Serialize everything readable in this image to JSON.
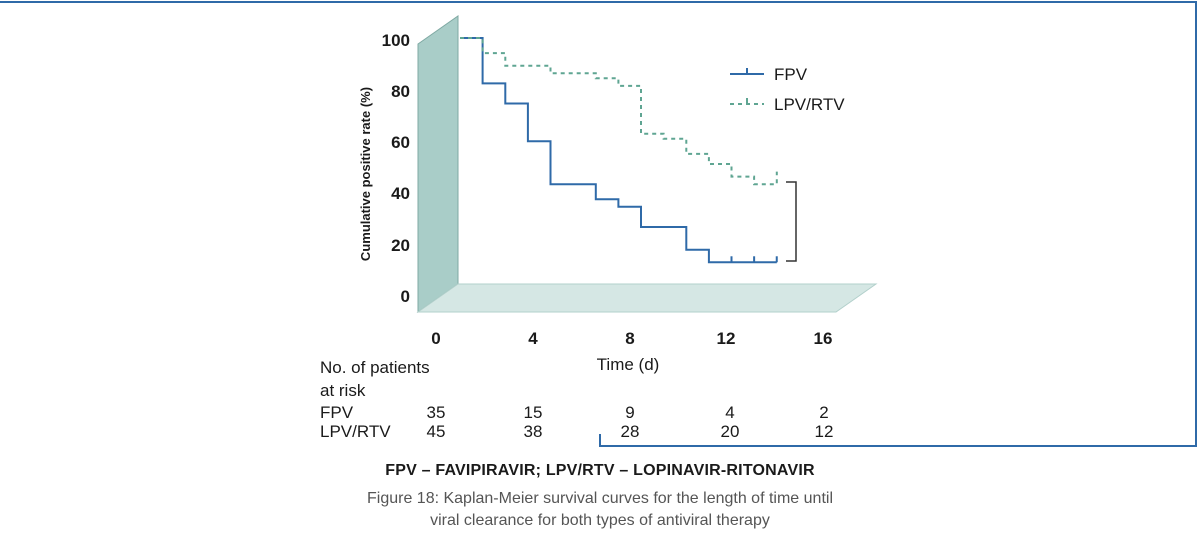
{
  "chart_data": {
    "type": "line",
    "step": true,
    "ylabel": "Cumulative positive rate (%)",
    "xlabel": "Time (d)",
    "xlim": [
      0,
      16
    ],
    "ylim": [
      0,
      100
    ],
    "xticks": [
      "0",
      "4",
      "8",
      "12",
      "16"
    ],
    "yticks": [
      "0",
      "20",
      "40",
      "60",
      "80",
      "100"
    ],
    "legend_position": "top-right",
    "series": [
      {
        "name": "FPV",
        "color": "#2f6aa8",
        "style": "solid",
        "x": [
          0,
          1,
          1,
          2,
          2,
          3,
          3,
          4,
          4,
          6,
          6,
          7,
          7,
          8,
          8,
          10,
          10,
          11,
          11,
          14
        ],
        "y": [
          100,
          100,
          82,
          82,
          74,
          74,
          59,
          59,
          42,
          42,
          36,
          36,
          33,
          33,
          25,
          25,
          16,
          16,
          11,
          11
        ],
        "censored_x": [
          12,
          13,
          14
        ],
        "censored_y": [
          11,
          11,
          11
        ]
      },
      {
        "name": "LPV/RTV",
        "color": "#5fa592",
        "style": "dashed",
        "x": [
          0,
          1,
          1,
          2,
          2,
          4,
          4,
          6,
          6,
          7,
          7,
          8,
          8,
          9,
          9,
          10,
          10,
          11,
          11,
          12,
          12,
          13,
          13,
          14,
          14
        ],
        "y": [
          100,
          100,
          94,
          94,
          89,
          89,
          86,
          86,
          84,
          84,
          81,
          81,
          62,
          62,
          60,
          60,
          54,
          54,
          50,
          50,
          45,
          45,
          42,
          42,
          47
        ]
      }
    ]
  },
  "risk_table": {
    "header_line1": "No. of patients",
    "header_line2": "at risk",
    "rows": [
      {
        "label": "FPV",
        "values": [
          "35",
          "15",
          "9",
          "4",
          "2"
        ]
      },
      {
        "label": "LPV/RTV",
        "values": [
          "45",
          "38",
          "28",
          "20",
          "12"
        ]
      }
    ]
  },
  "caption": {
    "title": "FPV – FAVIPIRAVIR; LPV/RTV – LOPINAVIR-RITONAVIR",
    "line1": "Figure 18: Kaplan-Meier survival curves for the length of time until",
    "line2": "viral clearance for both types of antiviral therapy"
  }
}
